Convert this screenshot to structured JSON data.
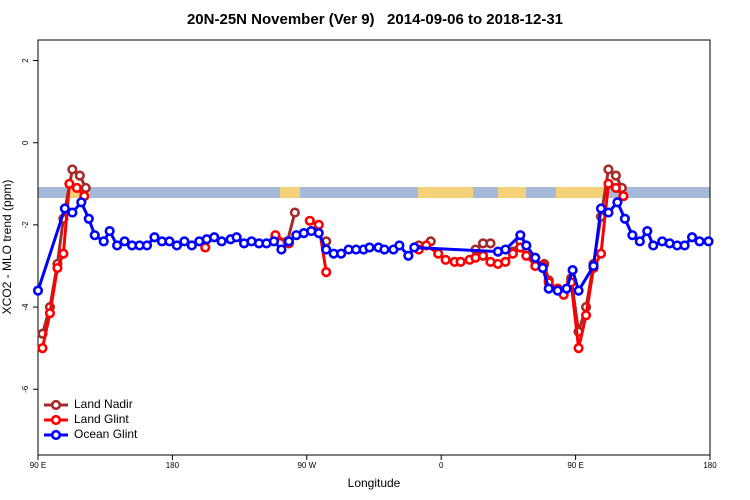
{
  "chart_data": {
    "type": "line",
    "title": "20N-25N November (Ver 9)   2014-09-06 to 2018-12-31",
    "xlabel": "Longitude",
    "ylabel": "XCO2 - MLO trend (ppm)",
    "xlim": [
      90,
      540
    ],
    "ylim": [
      -7.6,
      2.5
    ],
    "xticks": [
      {
        "value": 90,
        "label": "90 E"
      },
      180,
      {
        "value": 270,
        "label": "90 W"
      },
      {
        "value": 360,
        "label": "0"
      },
      {
        "value": 450,
        "label": "90 E"
      },
      {
        "value": 540,
        "label": "180"
      }
    ],
    "yticks": [
      2,
      0,
      -2,
      -4,
      -6
    ],
    "legend": "bottom-left",
    "series": [
      {
        "name": "Land Nadir",
        "color": "#a52a2a",
        "x": [
          93,
          98,
          103,
          107,
          113,
          118,
          122,
          null,
          249,
          257,
          262,
          null,
          283,
          null,
          345,
          353,
          null,
          383,
          388,
          393,
          null,
          408,
          413,
          null,
          429,
          432,
          null,
          447,
          452,
          457,
          462,
          467,
          472,
          477,
          481
        ],
        "values": [
          -4.65,
          -4.0,
          -2.95,
          -1.85,
          -0.65,
          -0.8,
          -1.1,
          null,
          -2.3,
          -2.4,
          -1.7,
          null,
          -2.4,
          null,
          -2.5,
          -2.4,
          null,
          -2.6,
          -2.45,
          -2.45,
          null,
          -2.65,
          -2.4,
          null,
          -2.95,
          -3.35,
          null,
          -3.3,
          -4.6,
          -4.0,
          -2.95,
          -1.8,
          -0.65,
          -0.8,
          -1.1
        ]
      },
      {
        "name": "Land Glint",
        "color": "#ff0000",
        "x": [
          93,
          98,
          103,
          107,
          111,
          116,
          121,
          null,
          202,
          null,
          249,
          258,
          null,
          272,
          278,
          283,
          null,
          345,
          350,
          358,
          363,
          369,
          373,
          379,
          383,
          388,
          393,
          398,
          403,
          408,
          413,
          417,
          423,
          428,
          432,
          438,
          442,
          447,
          452,
          457,
          462,
          467,
          472,
          477,
          482
        ],
        "values": [
          -5.0,
          -4.15,
          -3.05,
          -2.7,
          -1.0,
          -1.1,
          -1.3,
          null,
          -2.55,
          null,
          -2.25,
          -2.45,
          null,
          -1.9,
          -2.0,
          -3.15,
          null,
          -2.6,
          -2.5,
          -2.7,
          -2.85,
          -2.9,
          -2.9,
          -2.85,
          -2.8,
          -2.75,
          -2.9,
          -2.95,
          -2.9,
          -2.7,
          -2.55,
          -2.75,
          -3.0,
          -3.0,
          -3.4,
          -3.55,
          -3.7,
          -3.4,
          -5.0,
          -4.2,
          -3.05,
          -2.7,
          -1.0,
          -1.1,
          -1.3
        ]
      },
      {
        "name": "Ocean Glint",
        "color": "#0000ff",
        "x": [
          90,
          108,
          113,
          119,
          124,
          128,
          134,
          138,
          143,
          148,
          153,
          158,
          163,
          168,
          173,
          178,
          183,
          188,
          193,
          198,
          203,
          208,
          213,
          219,
          223,
          228,
          233,
          238,
          243,
          248,
          253,
          258,
          263,
          268,
          273,
          278,
          283,
          288,
          293,
          298,
          303,
          308,
          312,
          318,
          322,
          328,
          332,
          338,
          342,
          398,
          403,
          413,
          417,
          423,
          428,
          432,
          438,
          444,
          448,
          452,
          462,
          467,
          472,
          478,
          483,
          488,
          493,
          498,
          502,
          508,
          513,
          518,
          523,
          528,
          533,
          539
        ],
        "values": [
          -3.6,
          -1.6,
          -1.7,
          -1.45,
          -1.85,
          -2.25,
          -2.4,
          -2.15,
          -2.5,
          -2.4,
          -2.5,
          -2.5,
          -2.5,
          -2.3,
          -2.4,
          -2.4,
          -2.5,
          -2.4,
          -2.5,
          -2.4,
          -2.35,
          -2.3,
          -2.4,
          -2.35,
          -2.3,
          -2.45,
          -2.4,
          -2.45,
          -2.45,
          -2.4,
          -2.6,
          -2.4,
          -2.25,
          -2.2,
          -2.15,
          -2.2,
          -2.6,
          -2.7,
          -2.7,
          -2.6,
          -2.6,
          -2.6,
          -2.55,
          -2.55,
          -2.6,
          -2.6,
          -2.5,
          -2.75,
          -2.55,
          -2.65,
          -2.6,
          -2.25,
          -2.5,
          -2.8,
          -3.05,
          -3.55,
          -3.6,
          -3.55,
          -3.1,
          -3.6,
          -3.0,
          -1.6,
          -1.7,
          -1.45,
          -1.85,
          -2.25,
          -2.4,
          -2.15,
          -2.5,
          -2.4,
          -2.45,
          -2.5,
          -2.5,
          -2.3,
          -2.4,
          -2.4
        ]
      }
    ]
  }
}
